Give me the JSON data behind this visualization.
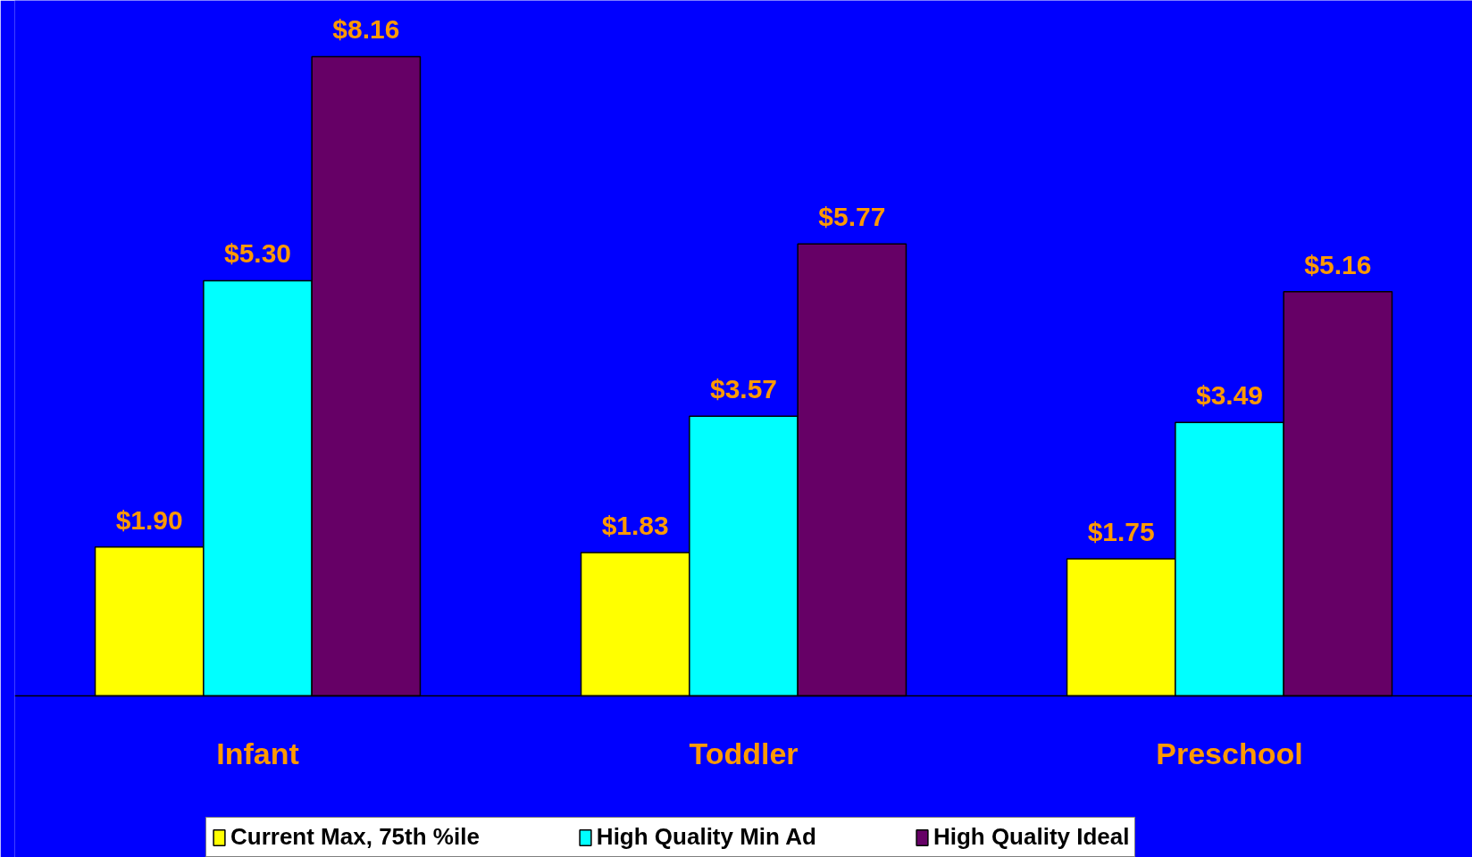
{
  "chart_data": {
    "type": "bar",
    "categories": [
      "Infant",
      "Toddler",
      "Preschool"
    ],
    "series": [
      {
        "name": "Current Max, 75th %ile",
        "color": "#ffff00",
        "values": [
          1.9,
          1.83,
          1.75
        ],
        "value_labels": [
          "$1.90",
          "$1.83",
          "$1.75"
        ]
      },
      {
        "name": "High Quality Min Ad",
        "color": "#00ffff",
        "values": [
          5.3,
          3.57,
          3.49
        ],
        "value_labels": [
          "$5.30",
          "$3.57",
          "$3.49"
        ]
      },
      {
        "name": "High Quality Ideal",
        "color": "#660066",
        "values": [
          8.16,
          5.77,
          5.16
        ],
        "value_labels": [
          "$8.16",
          "$5.77",
          "$5.16"
        ]
      }
    ],
    "legend": "bottom",
    "grid": false
  }
}
